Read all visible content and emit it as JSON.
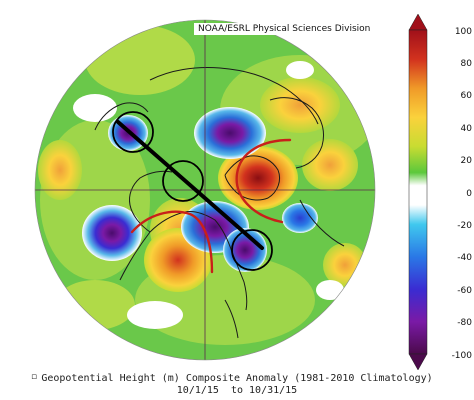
{
  "map": {
    "credit": "NOAA/ESRL Physical Sciences Division",
    "caption_line1": "Geopotential Height (m) Composite Anomaly (1981-2010 Climatology)",
    "caption_line2": "10/1/15  to 10/31/15",
    "caption_bullet": "▫"
  },
  "colorbar": {
    "labels": [
      "100",
      "80",
      "60",
      "40",
      "20",
      "0",
      "-20",
      "-40",
      "-60",
      "-80",
      "-100"
    ],
    "colors": [
      "#4b0a4b",
      "#7a1aa6",
      "#3a2cd2",
      "#2a78e6",
      "#40c8ee",
      "#ffffff",
      "#5cc83c",
      "#c8dc32",
      "#fad23c",
      "#f09a28",
      "#d2321e",
      "#a0101a"
    ]
  },
  "anomaly_colors": {
    "green_base": "#6ac84a",
    "light_green": "#a6d84a",
    "yellow": "#e6dc46",
    "orange": "#f0a03a",
    "red": "#d83a28",
    "dark_red": "#a01616",
    "white": "#ffffff",
    "cyan": "#58b8ea",
    "blue": "#2a6ed8",
    "purple": "#6a1aa8",
    "dark_purple": "#4a0c6c"
  }
}
